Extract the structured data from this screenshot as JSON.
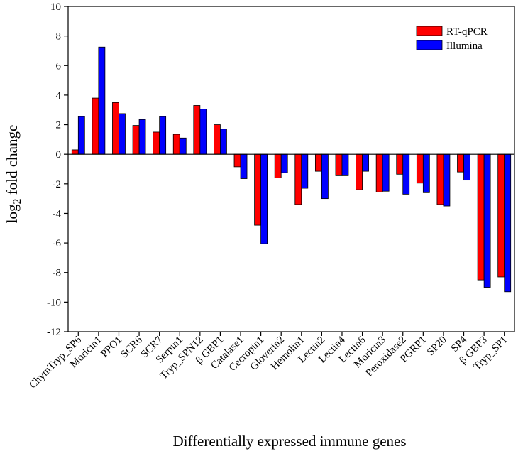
{
  "chart_data": {
    "type": "bar",
    "title": "",
    "xlabel": "Differentially expressed immune genes",
    "ylabel": {
      "prefix": "log",
      "subscript": "2",
      "suffix": " fold change"
    },
    "ylim": [
      -12,
      10
    ],
    "yticks": [
      10,
      8,
      6,
      4,
      2,
      0,
      -2,
      -4,
      -6,
      -8,
      -10,
      -12
    ],
    "legend_position": "top-right",
    "categories": [
      "ChymTryp_SP6",
      "Moricin1",
      "PPO1",
      "SCR6",
      "SCR7",
      "Serpin1",
      "Tryp_SPN12",
      "β GBP1",
      "Catalase1",
      "Cecropin1",
      "Gloverin2",
      "Hemolin1",
      "Lectin2",
      "Lectin4",
      "Lectin6",
      "Moricin3",
      "Peroxidase2",
      "PGRP1",
      "SP20",
      "SP4",
      "β GBP3",
      "Tryp_SP1"
    ],
    "series": [
      {
        "name": "RT-qPCR",
        "color": "#ff0000",
        "values": [
          0.3,
          3.8,
          3.5,
          1.95,
          1.5,
          1.35,
          3.3,
          2.0,
          -0.85,
          -4.8,
          -1.6,
          -3.4,
          -1.15,
          -1.45,
          -2.4,
          -2.55,
          -1.35,
          -1.95,
          -3.4,
          -1.2,
          -8.5,
          -8.3
        ]
      },
      {
        "name": "Illumina",
        "color": "#0000ff",
        "values": [
          2.55,
          7.25,
          2.75,
          2.35,
          2.55,
          1.1,
          3.05,
          1.7,
          -1.65,
          -6.05,
          -1.25,
          -2.3,
          -3.0,
          -1.45,
          -1.15,
          -2.5,
          -2.7,
          -2.6,
          -3.5,
          -1.75,
          -9.0,
          -9.3
        ]
      }
    ]
  }
}
